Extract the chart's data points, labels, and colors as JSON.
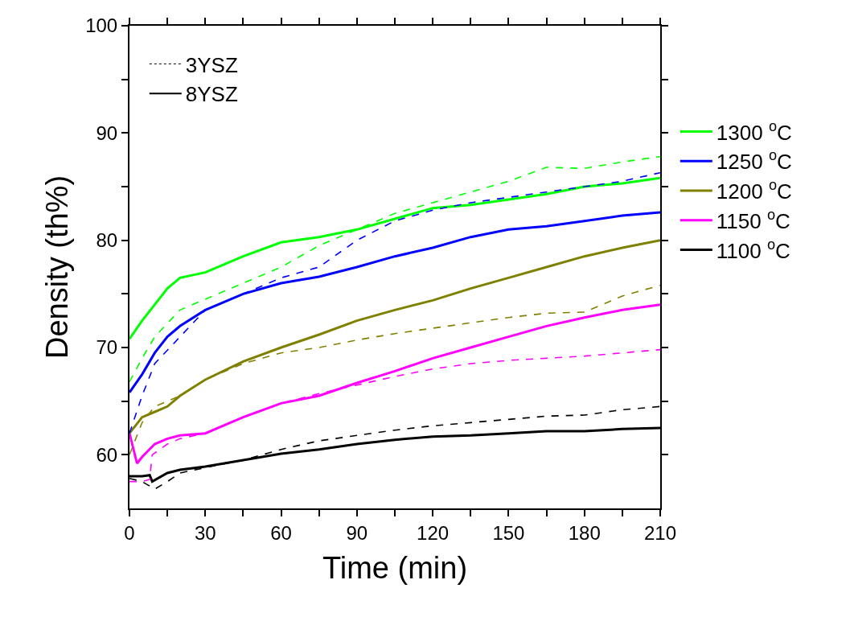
{
  "chart_data": {
    "type": "line",
    "xlabel": "Time (min)",
    "ylabel": "Density (th%)",
    "xlim": [
      0,
      210
    ],
    "ylim": [
      55,
      100
    ],
    "xticks": [
      0,
      {
        "value": 15,
        "label": null
      },
      30,
      {
        "value": 45,
        "label": null
      },
      60,
      {
        "value": 75,
        "label": null
      },
      90,
      {
        "value": 105,
        "label": null
      },
      120,
      {
        "value": 135,
        "label": null
      },
      150,
      {
        "value": 165,
        "label": null
      },
      180,
      {
        "value": 195,
        "label": null
      },
      210
    ],
    "yticks": [
      60,
      {
        "value": 65,
        "label": null
      },
      70,
      {
        "value": 75,
        "label": null
      },
      80,
      {
        "value": 85,
        "label": null
      },
      90,
      {
        "value": 95,
        "label": null
      },
      100
    ],
    "legend": "right",
    "marker": "none",
    "series": [
      {
        "name": "3YSZ",
        "color": "#000000",
        "line_style": "dotted"
      },
      {
        "name": "8YSZ",
        "color": "#000000",
        "line_style": "solid"
      },
      {
        "name": "1300 $^{o}$C",
        "color": "#00ff00",
        "line_style": "solid",
        "x": [
          0,
          5,
          10,
          15,
          20,
          30,
          45,
          60,
          75,
          90,
          105,
          120,
          135,
          150,
          165,
          180,
          195,
          210
        ],
        "values": [
          70.8,
          72.5,
          74,
          75.5,
          76.5,
          77,
          78.5,
          79.8,
          80.3,
          81,
          82,
          83,
          83.3,
          83.8,
          84.3,
          85,
          85.3,
          85.8
        ]
      },
      {
        "name": "1250 $^{o}$C",
        "color": "#0000ff",
        "line_style": "solid",
        "x": [
          0,
          5,
          10,
          15,
          20,
          30,
          45,
          60,
          75,
          90,
          105,
          120,
          135,
          150,
          165,
          180,
          195,
          210
        ],
        "values": [
          65.8,
          67.5,
          69.5,
          71,
          72,
          73.5,
          75,
          76,
          76.6,
          77.5,
          78.5,
          79.3,
          80.3,
          81,
          81.3,
          81.8,
          82.3,
          82.6
        ]
      },
      {
        "name": "1200 $^{o}$C",
        "color": "#808000",
        "line_style": "solid",
        "x": [
          0,
          5,
          10,
          15,
          20,
          30,
          45,
          60,
          75,
          90,
          105,
          120,
          135,
          150,
          165,
          180,
          195,
          210
        ],
        "values": [
          62,
          63.5,
          64,
          64.5,
          65.5,
          67,
          68.7,
          70,
          71.2,
          72.5,
          73.5,
          74.4,
          75.5,
          76.5,
          77.5,
          78.5,
          79.3,
          80
        ]
      },
      {
        "name": "1150 $^{o}$C",
        "color": "#ff00ff",
        "line_style": "solid",
        "x": [
          0,
          3,
          5,
          10,
          15,
          20,
          30,
          45,
          60,
          75,
          90,
          105,
          120,
          135,
          150,
          165,
          180,
          195,
          210
        ],
        "values": [
          62,
          59.2,
          59.8,
          61,
          61.5,
          61.8,
          62,
          63.5,
          64.8,
          65.5,
          66.7,
          67.8,
          69,
          70,
          71,
          72,
          72.8,
          73.5,
          74
        ]
      },
      {
        "name": "1100 $^{o}$C",
        "color": "#000000",
        "line_style": "solid",
        "x": [
          0,
          5,
          8,
          9,
          15,
          20,
          30,
          45,
          60,
          75,
          90,
          105,
          120,
          135,
          150,
          165,
          180,
          195,
          210
        ],
        "values": [
          58,
          58,
          58.1,
          57.5,
          58.3,
          58.6,
          58.9,
          59.5,
          60.1,
          60.5,
          61,
          61.4,
          61.7,
          61.8,
          62,
          62.2,
          62.2,
          62.4,
          62.5
        ]
      },
      {
        "color": "#00ff00",
        "line_style": "dashed",
        "x": [
          0,
          5,
          10,
          20,
          30,
          45,
          60,
          75,
          90,
          105,
          120,
          135,
          150,
          165,
          180,
          195,
          210
        ],
        "values": [
          66.8,
          69,
          71,
          73.5,
          74.5,
          76,
          77.5,
          79.5,
          81,
          82.5,
          83.5,
          84.5,
          85.5,
          86.8,
          86.7,
          87.3,
          87.8
        ]
      },
      {
        "color": "#0000ff",
        "line_style": "dashed",
        "x": [
          0,
          5,
          10,
          20,
          30,
          45,
          60,
          75,
          90,
          105,
          120,
          135,
          150,
          165,
          180,
          195,
          210
        ],
        "values": [
          62,
          65.5,
          68.5,
          71,
          73.5,
          75,
          76.5,
          77.5,
          80,
          81.8,
          82.8,
          83.5,
          84,
          84.5,
          85,
          85.5,
          86.3
        ]
      },
      {
        "color": "#808000",
        "line_style": "dashed",
        "x": [
          0,
          5,
          10,
          20,
          30,
          45,
          60,
          75,
          90,
          105,
          120,
          135,
          150,
          165,
          180,
          195,
          210
        ],
        "values": [
          60,
          63,
          64.5,
          65.5,
          67,
          68.5,
          69.5,
          70,
          70.7,
          71.3,
          71.8,
          72.3,
          72.8,
          73.2,
          73.3,
          74.8,
          75.8
        ]
      },
      {
        "color": "#ff00ff",
        "line_style": "dashed",
        "x": [
          0,
          5,
          8,
          9,
          15,
          20,
          30,
          45,
          60,
          75,
          90,
          105,
          120,
          135,
          150,
          165,
          180,
          195,
          210
        ],
        "values": [
          57.5,
          57.5,
          57.7,
          60,
          61,
          61.5,
          62,
          63.5,
          64.8,
          65.7,
          66.5,
          67.3,
          68,
          68.5,
          68.8,
          69,
          69.2,
          69.5,
          69.8
        ]
      },
      {
        "color": "#000000",
        "line_style": "dashed",
        "x": [
          0,
          5,
          10,
          15,
          20,
          30,
          45,
          60,
          75,
          90,
          105,
          120,
          135,
          150,
          165,
          180,
          195,
          210
        ],
        "values": [
          57.8,
          57.5,
          56.8,
          57.5,
          58.3,
          58.8,
          59.5,
          60.5,
          61.3,
          61.8,
          62.3,
          62.7,
          63,
          63.3,
          63.6,
          63.7,
          64.2,
          64.5
        ]
      }
    ]
  }
}
